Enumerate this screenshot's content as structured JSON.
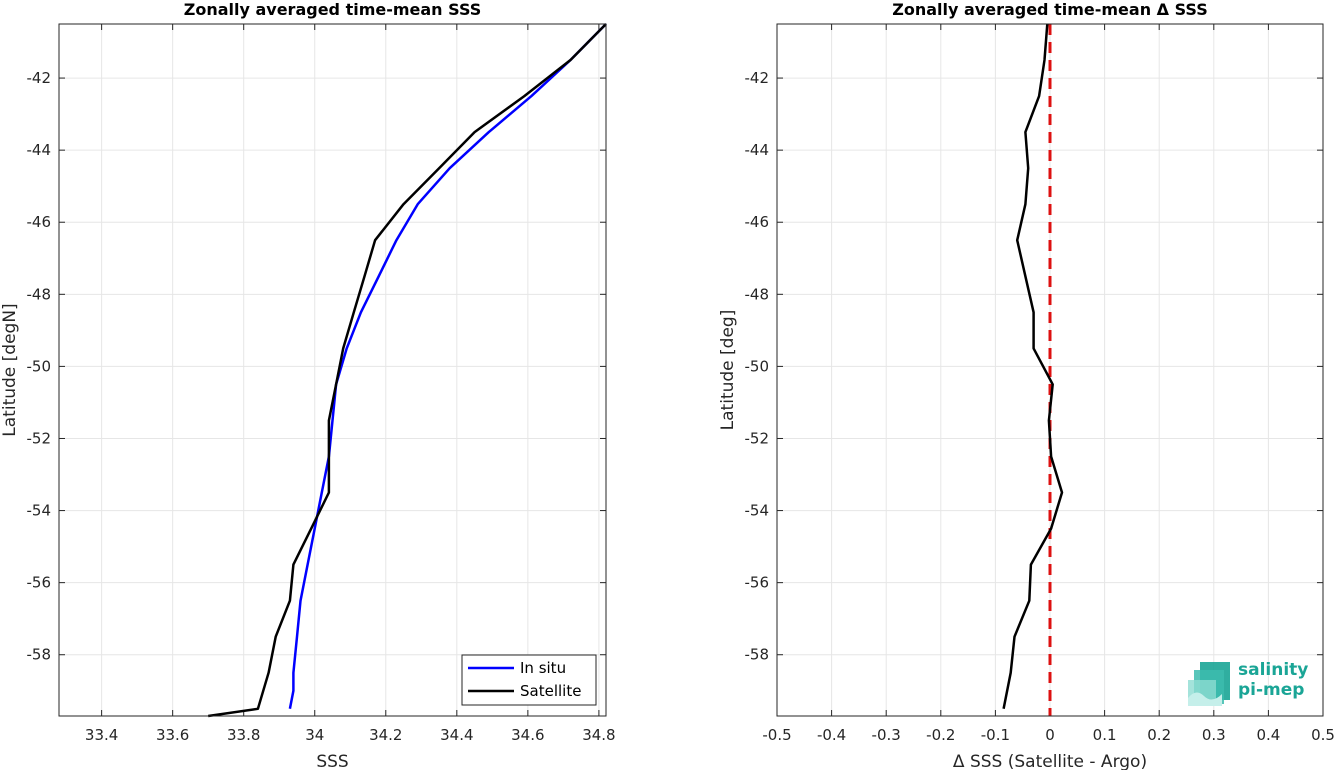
{
  "chart_data": [
    {
      "type": "line",
      "title": "Zonally averaged time-mean SSS",
      "xlabel": "SSS",
      "ylabel": "Latitude [degN]",
      "xlim": [
        33.28,
        34.82
      ],
      "ylim": [
        -59.7,
        -40.5
      ],
      "xticks": [
        33.4,
        33.6,
        33.8,
        34,
        34.2,
        34.4,
        34.6,
        34.8
      ],
      "yticks": [
        -42,
        -44,
        -46,
        -48,
        -50,
        -52,
        -54,
        -56,
        -58
      ],
      "grid": true,
      "legend": "bottom-right",
      "series": [
        {
          "name": "In situ",
          "color": "#0000ff",
          "x": [
            34.82,
            34.72,
            34.61,
            34.49,
            34.38,
            34.29,
            34.23,
            34.18,
            34.13,
            34.09,
            34.06,
            34.05,
            34.04,
            34.02,
            34.0,
            33.98,
            33.96,
            33.95,
            33.94,
            33.94,
            33.93
          ],
          "y": [
            -40.5,
            -41.5,
            -42.5,
            -43.5,
            -44.5,
            -45.5,
            -46.5,
            -47.5,
            -48.5,
            -49.5,
            -50.5,
            -51.5,
            -52.5,
            -53.5,
            -54.5,
            -55.5,
            -56.5,
            -57.5,
            -58.5,
            -59.0,
            -59.5
          ]
        },
        {
          "name": "Satellite",
          "color": "#000000",
          "x": [
            34.82,
            34.72,
            34.59,
            34.45,
            34.35,
            34.25,
            34.17,
            34.14,
            34.11,
            34.08,
            34.06,
            34.04,
            34.04,
            34.04,
            33.99,
            33.94,
            33.93,
            33.89,
            33.87,
            33.84,
            33.7
          ],
          "y": [
            -40.5,
            -41.5,
            -42.5,
            -43.5,
            -44.5,
            -45.5,
            -46.5,
            -47.5,
            -48.5,
            -49.5,
            -50.5,
            -51.5,
            -52.5,
            -53.5,
            -54.5,
            -55.5,
            -56.5,
            -57.5,
            -58.5,
            -59.5,
            -59.7
          ]
        }
      ]
    },
    {
      "type": "line",
      "title": "Zonally averaged time-mean Δ SSS",
      "xlabel": "Δ SSS (Satellite - Argo)",
      "ylabel": "Latitude [deg]",
      "xlim": [
        -0.5,
        0.5
      ],
      "ylim": [
        -59.7,
        -40.5
      ],
      "xticks": [
        -0.5,
        -0.4,
        -0.3,
        -0.2,
        -0.1,
        0,
        0.1,
        0.2,
        0.3,
        0.4,
        0.5
      ],
      "yticks": [
        -42,
        -44,
        -46,
        -48,
        -50,
        -52,
        -54,
        -56,
        -58
      ],
      "grid": true,
      "reference_line": {
        "x": 0,
        "color": "#dd1111",
        "style": "dashed"
      },
      "series": [
        {
          "color": "#000000",
          "x": [
            -0.005,
            -0.01,
            -0.02,
            -0.045,
            -0.04,
            -0.045,
            -0.06,
            -0.045,
            -0.03,
            -0.03,
            0.005,
            -0.002,
            0.002,
            0.022,
            0.002,
            -0.035,
            -0.038,
            -0.065,
            -0.072,
            -0.085
          ],
          "y": [
            -40.5,
            -41.5,
            -42.5,
            -43.5,
            -44.5,
            -45.5,
            -46.5,
            -47.5,
            -48.5,
            -49.5,
            -50.5,
            -51.5,
            -52.5,
            -53.5,
            -54.5,
            -55.5,
            -56.5,
            -57.5,
            -58.5,
            -59.5
          ]
        }
      ]
    }
  ],
  "logo": {
    "line1": "salinity",
    "line2": "pi-mep",
    "color": "#1aa596"
  }
}
